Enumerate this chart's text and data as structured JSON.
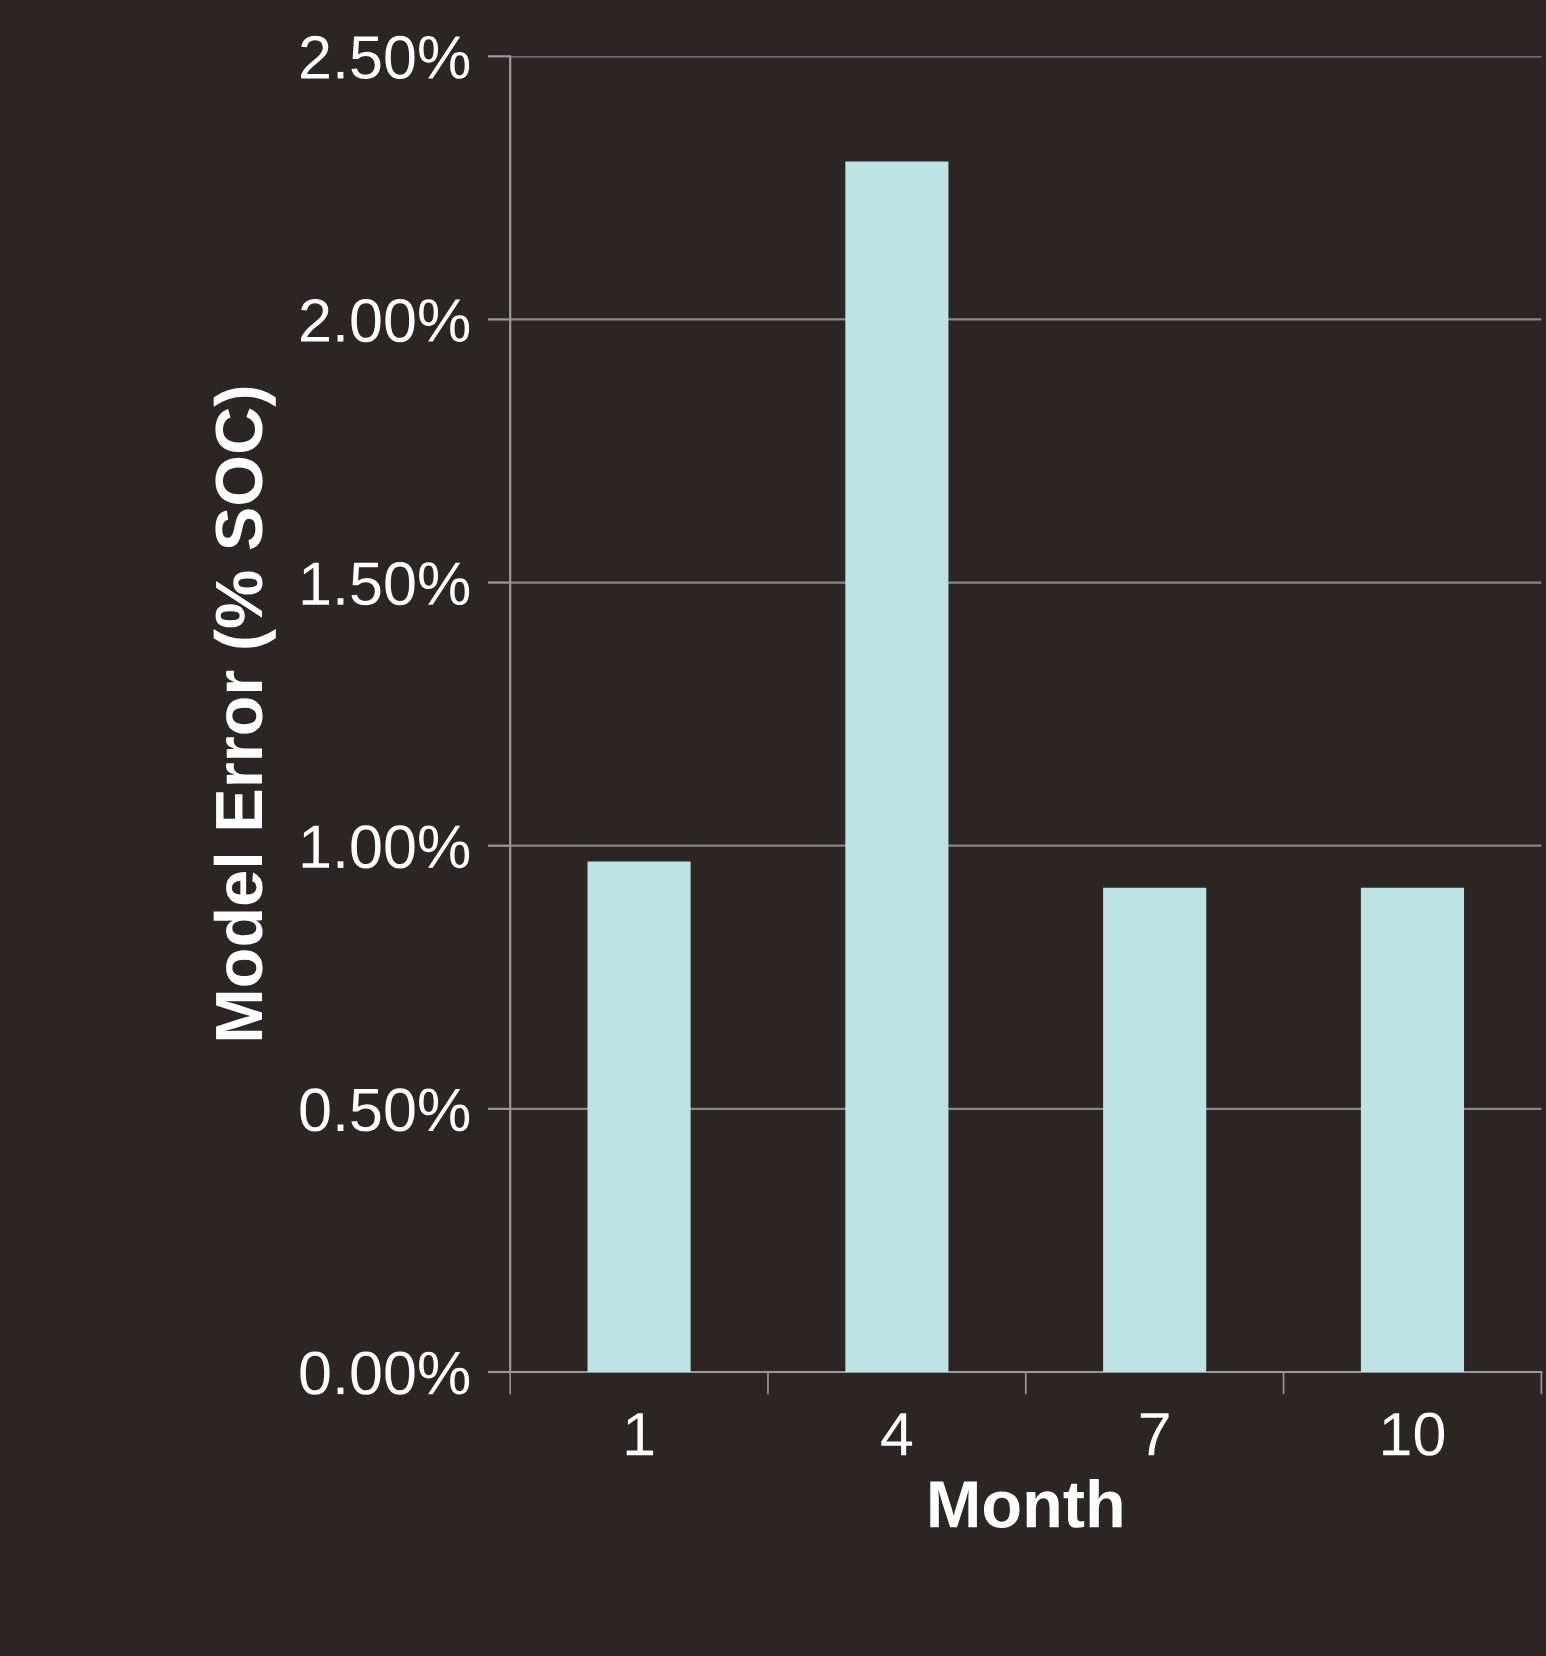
{
  "chart_data": {
    "type": "bar",
    "categories": [
      "1",
      "4",
      "7",
      "10"
    ],
    "values": [
      0.97,
      2.3,
      0.92,
      0.92
    ],
    "color": "#bde3e5",
    "xlabel": "Month",
    "ylabel": "Model Error (% SOC)",
    "ylim": [
      0,
      2.5
    ],
    "yticks": [
      {
        "value": 0,
        "label": "0.00%"
      },
      {
        "value": 0.5,
        "label": "0.50%"
      },
      {
        "value": 1.0,
        "label": "1.00%"
      },
      {
        "value": 1.5,
        "label": "1.50%"
      },
      {
        "value": 2.0,
        "label": "2.00%"
      },
      {
        "value": 2.5,
        "label": "2.50%"
      }
    ],
    "grid": "y",
    "legend": false
  }
}
